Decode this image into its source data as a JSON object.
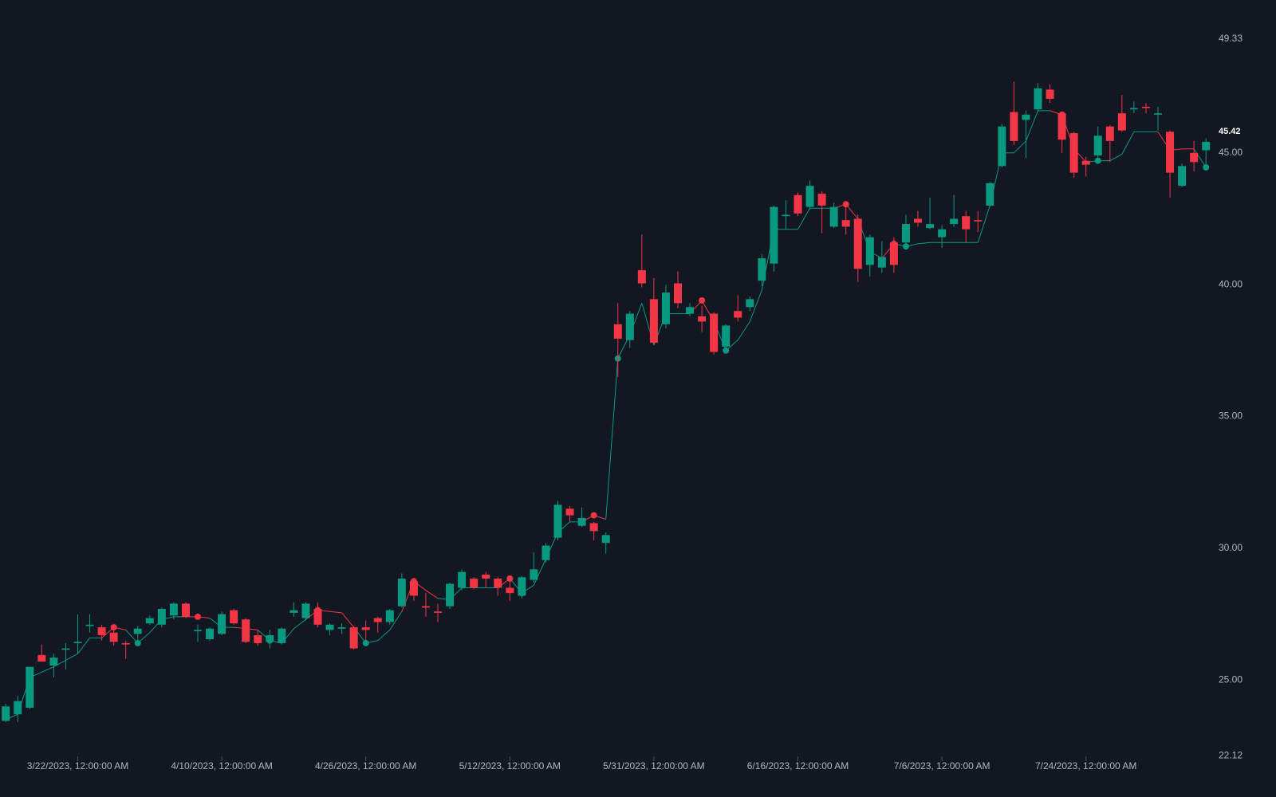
{
  "chart_data": {
    "type": "candlestick",
    "up_color": "#089981",
    "down_color": "#f23645",
    "categories": [
      null,
      null,
      null,
      null,
      null,
      null,
      "3/22/2023, 12:00:00 AM",
      null,
      null,
      null,
      null,
      null,
      null,
      null,
      null,
      null,
      null,
      null,
      "4/10/2023, 12:00:00 AM",
      null,
      null,
      null,
      null,
      null,
      null,
      null,
      null,
      null,
      null,
      null,
      "4/26/2023, 12:00:00 AM",
      null,
      null,
      null,
      null,
      null,
      null,
      null,
      null,
      null,
      null,
      null,
      "5/12/2023, 12:00:00 AM",
      null,
      null,
      null,
      null,
      null,
      null,
      null,
      null,
      null,
      null,
      null,
      "5/31/2023, 12:00:00 AM",
      null,
      null,
      null,
      null,
      null,
      null,
      null,
      null,
      null,
      null,
      null,
      "6/16/2023, 12:00:00 AM",
      null,
      null,
      null,
      null,
      null,
      null,
      null,
      null,
      null,
      null,
      null,
      "7/6/2023, 12:00:00 AM",
      null,
      null,
      null,
      null,
      null,
      null,
      null,
      null,
      null,
      null,
      null,
      "7/24/2023, 12:00:00 AM",
      null,
      null,
      null,
      null,
      null,
      null,
      null,
      null,
      null,
      null
    ],
    "open": [
      23.45,
      23.7,
      23.95,
      25.95,
      25.55,
      26.15,
      26.4,
      27.05,
      27.0,
      26.8,
      26.4,
      26.75,
      27.15,
      27.1,
      27.45,
      27.9,
      26.85,
      26.55,
      26.75,
      27.65,
      27.3,
      26.7,
      26.45,
      26.4,
      27.55,
      27.35,
      27.7,
      26.9,
      26.95,
      27.0,
      27.0,
      27.35,
      27.2,
      27.8,
      28.75,
      27.8,
      27.6,
      27.8,
      28.5,
      28.85,
      29.0,
      28.85,
      28.5,
      28.2,
      28.8,
      29.55,
      30.4,
      31.5,
      30.85,
      30.95,
      30.2,
      38.5,
      37.9,
      40.55,
      39.45,
      38.5,
      40.05,
      38.9,
      38.8,
      38.9,
      37.65,
      39.0,
      39.15,
      40.15,
      40.8,
      42.6,
      43.4,
      42.95,
      43.45,
      42.2,
      42.45,
      42.5,
      40.75,
      40.65,
      41.6,
      41.6,
      42.5,
      42.15,
      41.8,
      42.3,
      42.6,
      42.45,
      43.0,
      44.5,
      46.55,
      46.25,
      46.65,
      47.4,
      46.5,
      45.75,
      44.7,
      44.9,
      46.0,
      46.5,
      46.65,
      46.75,
      46.45,
      45.8,
      43.75,
      45.0,
      45.1
    ],
    "high": [
      24.1,
      24.4,
      25.5,
      26.35,
      26.0,
      26.4,
      27.5,
      27.5,
      27.1,
      27.0,
      26.5,
      27.05,
      27.45,
      27.75,
      27.95,
      27.95,
      27.1,
      27.0,
      27.6,
      27.7,
      27.35,
      26.9,
      26.9,
      27.0,
      27.95,
      27.95,
      27.95,
      27.15,
      27.15,
      27.05,
      27.25,
      27.4,
      27.7,
      29.05,
      28.85,
      28.3,
      27.9,
      28.7,
      29.2,
      28.9,
      29.1,
      28.9,
      28.8,
      28.95,
      29.85,
      30.2,
      31.8,
      31.6,
      31.55,
      31.0,
      30.6,
      39.3,
      39.0,
      41.9,
      40.25,
      40.0,
      40.5,
      39.3,
      39.2,
      38.95,
      38.5,
      39.6,
      39.55,
      41.15,
      43.0,
      43.2,
      43.5,
      43.95,
      43.55,
      43.1,
      43.0,
      42.65,
      41.9,
      41.65,
      41.8,
      42.65,
      42.8,
      43.3,
      42.25,
      43.4,
      42.8,
      42.8,
      43.9,
      46.1,
      47.7,
      46.6,
      47.65,
      47.6,
      46.55,
      45.8,
      44.85,
      46.0,
      46.05,
      47.2,
      46.95,
      46.9,
      46.75,
      45.85,
      44.6,
      45.45,
      45.55
    ],
    "low": [
      23.4,
      23.4,
      23.9,
      25.7,
      25.1,
      25.4,
      26.0,
      26.8,
      26.5,
      26.3,
      25.8,
      26.4,
      27.1,
      27.0,
      27.3,
      27.35,
      26.45,
      26.5,
      26.7,
      27.1,
      26.4,
      26.3,
      26.2,
      26.35,
      27.4,
      27.25,
      27.0,
      26.7,
      26.75,
      26.15,
      26.5,
      26.8,
      27.1,
      27.75,
      28.0,
      27.4,
      27.2,
      27.7,
      28.4,
      28.45,
      28.5,
      28.2,
      28.0,
      28.1,
      28.7,
      29.45,
      30.3,
      31.0,
      30.8,
      30.3,
      29.8,
      36.5,
      37.6,
      39.9,
      37.75,
      38.35,
      39.1,
      38.8,
      38.2,
      37.35,
      37.55,
      38.6,
      39.0,
      39.95,
      40.5,
      42.1,
      42.6,
      42.85,
      41.95,
      42.15,
      41.9,
      40.1,
      40.3,
      40.45,
      40.45,
      41.5,
      42.2,
      42.1,
      41.4,
      42.2,
      41.6,
      42.0,
      42.95,
      44.45,
      45.3,
      44.8,
      46.55,
      46.9,
      45.0,
      44.05,
      44.1,
      44.75,
      44.65,
      45.8,
      46.5,
      46.5,
      45.85,
      43.3,
      43.7,
      44.3,
      44.55
    ],
    "close": [
      24.0,
      24.2,
      25.5,
      25.7,
      25.85,
      26.2,
      26.45,
      27.1,
      26.7,
      26.45,
      26.35,
      26.95,
      27.35,
      27.7,
      27.9,
      27.4,
      26.9,
      26.95,
      27.5,
      27.15,
      26.45,
      26.4,
      26.7,
      26.95,
      27.65,
      27.9,
      27.1,
      27.1,
      27.0,
      26.2,
      26.9,
      27.2,
      27.65,
      28.85,
      28.2,
      27.75,
      27.55,
      28.65,
      29.1,
      28.5,
      28.85,
      28.5,
      28.3,
      28.9,
      29.2,
      30.1,
      31.65,
      31.25,
      31.15,
      30.65,
      30.5,
      37.95,
      38.9,
      40.05,
      37.8,
      39.7,
      39.3,
      39.15,
      38.6,
      37.45,
      38.45,
      38.75,
      39.45,
      41.0,
      42.95,
      42.65,
      42.7,
      43.75,
      43.0,
      42.95,
      42.2,
      40.6,
      41.8,
      41.05,
      40.75,
      42.3,
      42.35,
      42.3,
      42.1,
      42.5,
      42.1,
      42.4,
      43.85,
      46.0,
      45.45,
      46.45,
      47.45,
      47.05,
      45.5,
      44.25,
      44.55,
      45.65,
      45.45,
      45.85,
      46.7,
      46.7,
      46.5,
      44.25,
      44.5,
      44.65,
      45.42
    ],
    "line": [
      23.5,
      23.7,
      25.1,
      25.3,
      25.5,
      25.75,
      26.0,
      26.6,
      26.6,
      27.0,
      26.9,
      26.4,
      26.8,
      27.3,
      27.4,
      27.4,
      27.4,
      27.35,
      27.0,
      27.0,
      26.95,
      26.9,
      26.5,
      26.4,
      26.95,
      27.3,
      27.65,
      27.6,
      27.55,
      27.0,
      26.4,
      26.5,
      26.9,
      27.6,
      28.75,
      28.4,
      28.1,
      28.05,
      28.5,
      28.5,
      28.5,
      28.5,
      28.85,
      28.3,
      28.6,
      29.6,
      30.6,
      31.0,
      31.0,
      31.25,
      31.1,
      37.2,
      38.1,
      39.3,
      37.7,
      38.9,
      38.9,
      38.9,
      39.4,
      38.6,
      37.5,
      37.9,
      38.6,
      39.8,
      42.1,
      42.1,
      42.1,
      42.9,
      42.9,
      42.9,
      43.05,
      42.5,
      41.25,
      41.0,
      41.55,
      41.45,
      41.55,
      41.6,
      41.6,
      41.6,
      41.6,
      41.6,
      43.0,
      45.0,
      45.0,
      45.45,
      46.6,
      46.6,
      46.45,
      45.15,
      44.65,
      44.7,
      44.7,
      44.95,
      45.8,
      45.8,
      45.8,
      45.1,
      45.15,
      45.15,
      44.45
    ],
    "ylim": [
      22.12,
      49.33
    ],
    "yticks": [
      22.12,
      {
        "value": 25,
        "label": "25.00"
      },
      {
        "value": 30,
        "label": "30.00"
      },
      {
        "value": 35,
        "label": "35.00"
      },
      {
        "value": 40,
        "label": "40.00"
      },
      {
        "value": 45,
        "label": "45.00"
      },
      49.33
    ],
    "last_price": 45.42
  }
}
